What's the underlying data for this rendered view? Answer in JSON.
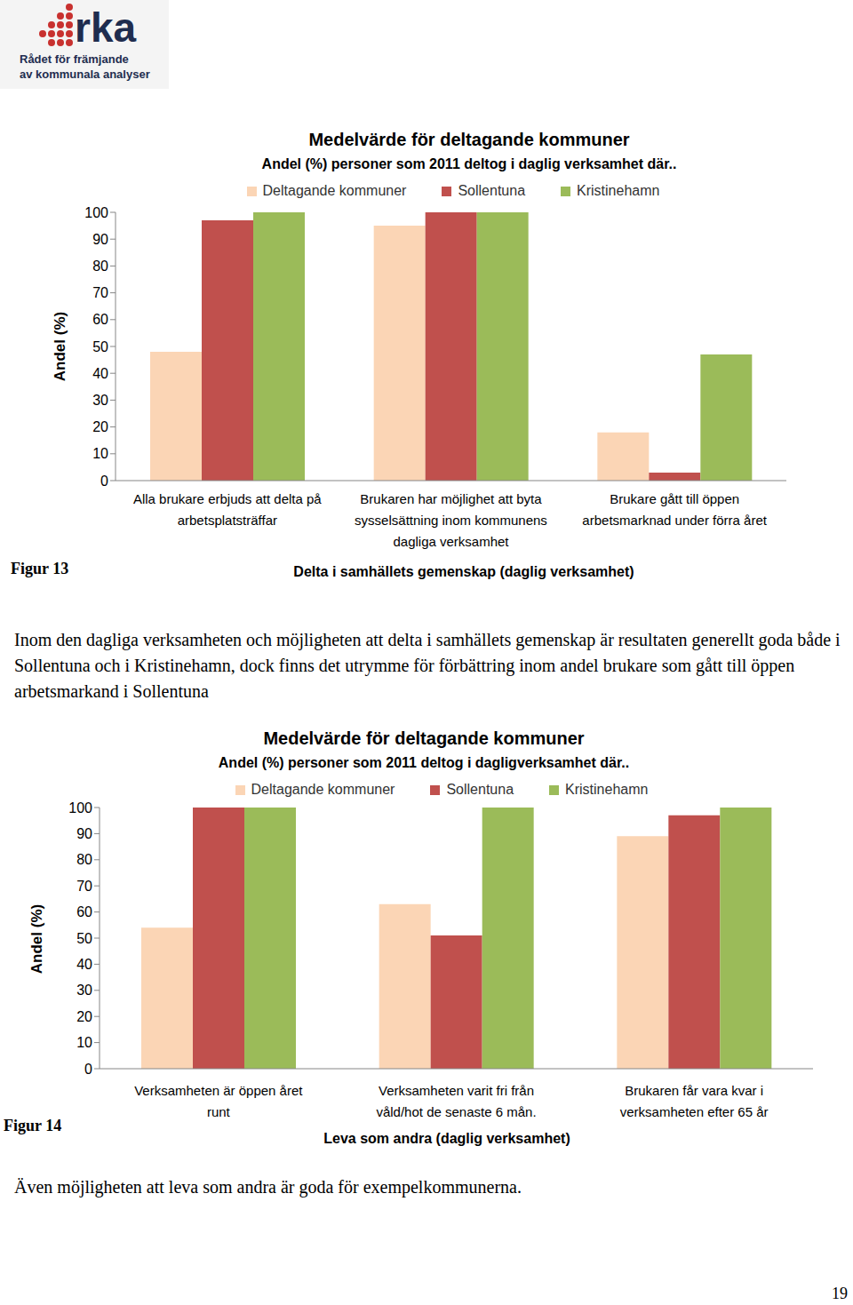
{
  "header": {
    "logo": "rka",
    "tagline": [
      "Rådet för främjande",
      "av kommunala analyser"
    ]
  },
  "chart_data": [
    {
      "type": "bar",
      "title": "Medelvärde för deltagande kommuner",
      "subtitle": "Andel (%) personer som 2011 deltog i daglig verksamhet där..",
      "x_label": "Delta i samhällets gemenskap (daglig verksamhet)",
      "y_label": "Andel (%)",
      "annotations": [
        "Figur 13"
      ],
      "categories": [
        "Alla brukare erbjuds att delta på\narbetsplatsträffar",
        "Brukaren har möjlighet att byta\nsysselsättning inom kommunens\ndagliga verksamhet",
        "Brukare gått till öppen\narbetsmarknad under förra året"
      ],
      "series": [
        {
          "name": "Deltagande kommuner",
          "color": "#fbd5b5",
          "values": [
            48,
            95,
            18
          ]
        },
        {
          "name": "Sollentuna",
          "color": "#c0504d",
          "values": [
            97,
            100,
            3
          ]
        },
        {
          "name": "Kristinehamn",
          "color": "#9bbb59",
          "values": [
            100,
            100,
            47
          ]
        }
      ],
      "ylim": [
        0,
        100
      ],
      "yticks": [
        0,
        10,
        20,
        30,
        40,
        50,
        60,
        70,
        80,
        90,
        100
      ],
      "grid": false,
      "legend": "top"
    },
    {
      "type": "bar",
      "title": "Medelvärde för deltagande kommuner",
      "subtitle": "Andel (%) personer som 2011 deltog i dagligverksamhet där..",
      "x_label": "Leva som andra (daglig verksamhet)",
      "y_label": "Andel (%)",
      "annotations": [
        "Figur 14"
      ],
      "categories": [
        "Verksamheten är öppen året\nrunt",
        "Verksamheten varit fri från\nvåld/hot de senaste 6 mån.",
        "Brukaren får vara kvar i\nverksamheten efter 65 år"
      ],
      "series": [
        {
          "name": "Deltagande kommuner",
          "color": "#fbd5b5",
          "values": [
            54,
            63,
            89
          ]
        },
        {
          "name": "Sollentuna",
          "color": "#c0504d",
          "values": [
            100,
            51,
            97
          ]
        },
        {
          "name": "Kristinehamn",
          "color": "#9bbb59",
          "values": [
            100,
            100,
            100
          ]
        }
      ],
      "ylim": [
        0,
        100
      ],
      "yticks": [
        0,
        10,
        20,
        30,
        40,
        50,
        60,
        70,
        80,
        90,
        100
      ],
      "grid": false,
      "legend": "top"
    }
  ],
  "paragraphs": [
    "Inom den dagliga verksamheten och möjligheten att delta i samhällets gemenskap är resultaten generellt goda både i Sollentuna och i Kristinehamn, dock finns det utrymme för förbättring inom andel brukare som gått till öppen arbetsmarkand i Sollentuna",
    "Även möjligheten att leva som andra är goda för exempelkommunerna."
  ],
  "page_number": "19"
}
